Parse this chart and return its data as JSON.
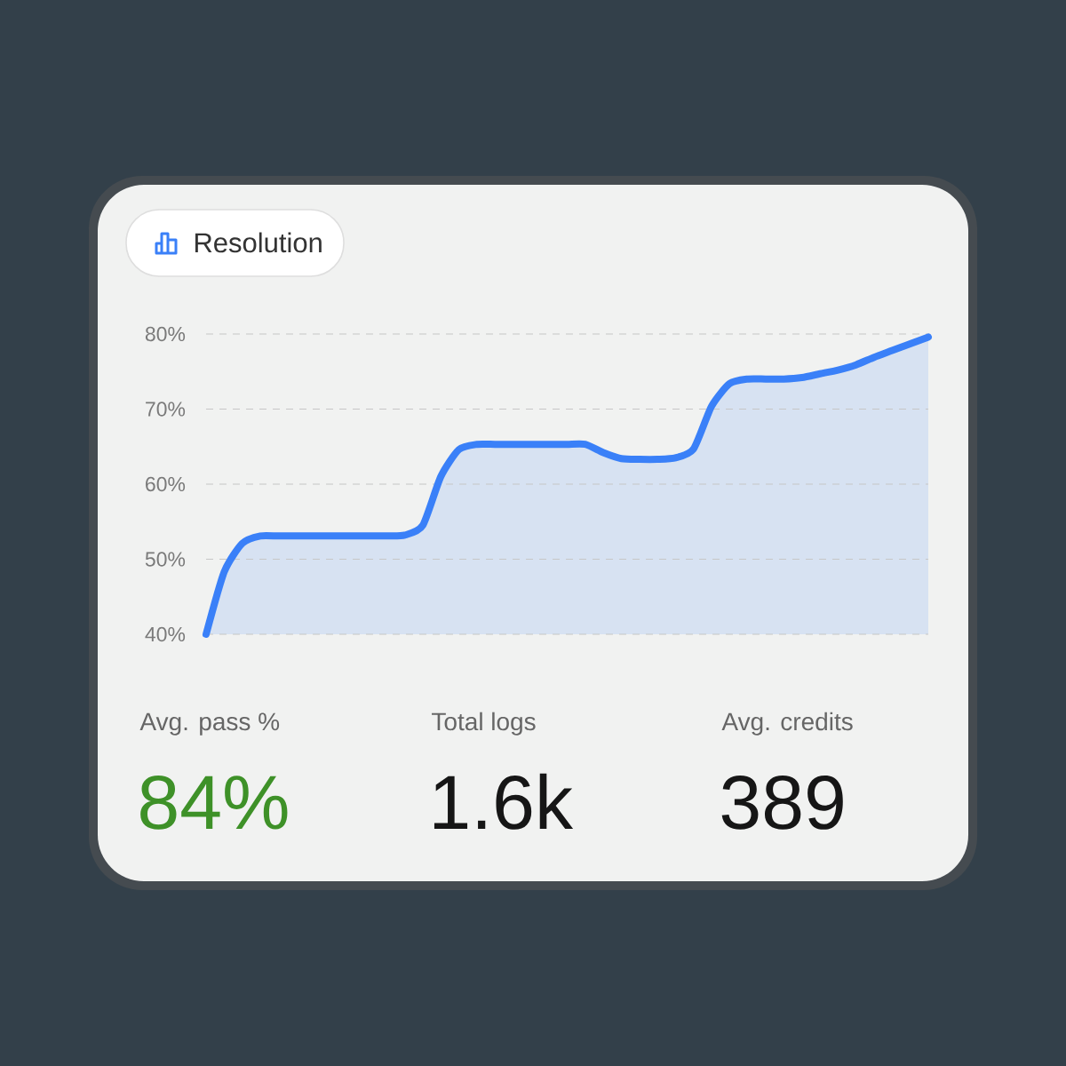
{
  "chart_data": [
    {
      "type": "area",
      "title": "Resolution",
      "categories": [
        null,
        null,
        null,
        null,
        null,
        null,
        null,
        null,
        null,
        null,
        null,
        null,
        null,
        null,
        null,
        null,
        null,
        null,
        null,
        null,
        null,
        null,
        null,
        null,
        null,
        null,
        null,
        null,
        null,
        null,
        null,
        null,
        null,
        null,
        null,
        null,
        null,
        null,
        null,
        null,
        null
      ],
      "values": [
        40,
        48.3,
        52.1,
        53.1,
        53.1,
        53.1,
        53.1,
        53.1,
        53.1,
        53.1,
        53.1,
        53.2,
        54.5,
        61.0,
        64.6,
        65.3,
        65.3,
        65.3,
        65.3,
        65.3,
        65.3,
        65.3,
        64.2,
        63.4,
        63.3,
        63.3,
        63.5,
        64.7,
        70.4,
        73.4,
        74.0,
        74.0,
        74.0,
        74.2,
        74.7,
        75.2,
        75.9,
        76.9,
        77.8,
        78.7,
        79.6
      ],
      "color": "#3a80f8",
      "ylim": [
        40,
        80
      ],
      "yticks": [
        {
          "value": 40,
          "label": "40%"
        },
        {
          "value": 50,
          "label": "50%"
        },
        {
          "value": 60,
          "label": "60%"
        },
        {
          "value": 70,
          "label": "70%"
        },
        {
          "value": 80,
          "label": "80%"
        }
      ],
      "grid": "y",
      "tick_labels": "y"
    },
    {
      "type": "other",
      "annotations": [
        "Avg. pass %",
        "84%",
        "Total logs",
        "1.6k",
        "Avg. credits",
        "389"
      ]
    }
  ]
}
